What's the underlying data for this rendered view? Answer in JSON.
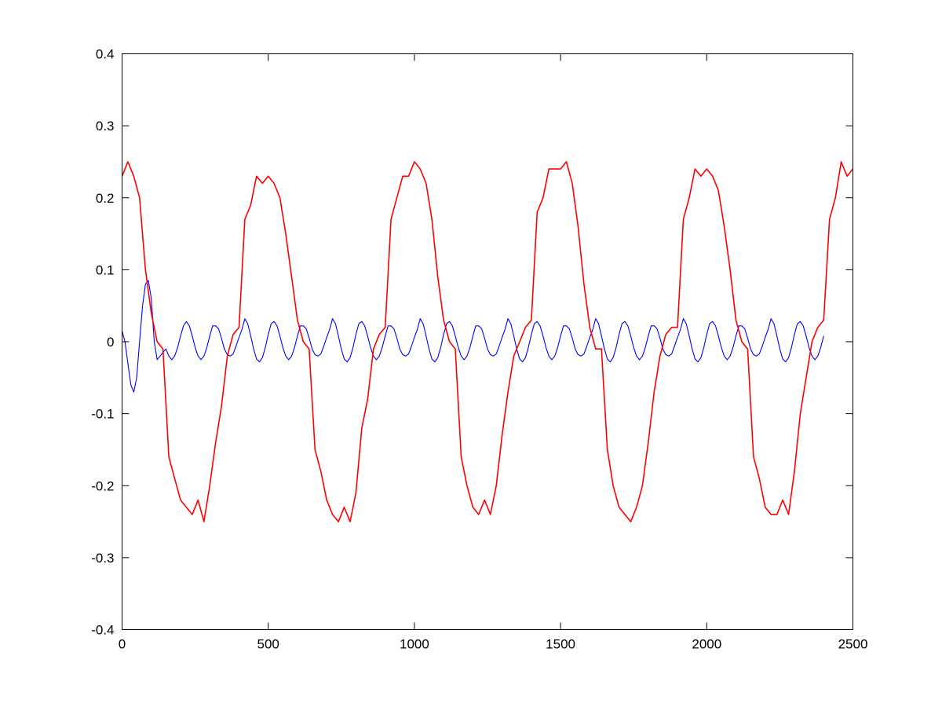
{
  "chart_data": {
    "type": "line",
    "title": "",
    "xlabel": "",
    "ylabel": "",
    "xlim": [
      0,
      2500
    ],
    "ylim": [
      -0.4,
      0.4
    ],
    "grid": false,
    "legend": "none",
    "xticks": [
      0,
      500,
      1000,
      1500,
      2000,
      2500
    ],
    "xtick_labels": [
      "0",
      "500",
      "1000",
      "1500",
      "2000",
      "2500"
    ],
    "yticks": [
      -0.4,
      -0.3,
      -0.2,
      -0.1,
      0,
      0.1,
      0.2,
      0.3,
      0.4
    ],
    "ytick_labels": [
      "-0.4",
      "-0.3",
      "-0.2",
      "-0.1",
      "0",
      "0.1",
      "0.2",
      "0.3",
      "0.4"
    ],
    "series": [
      {
        "name": "blue",
        "color": "#0000ff",
        "x_start": 0,
        "x_step": 10,
        "values": [
          0.015,
          0.0,
          -0.03,
          -0.06,
          -0.07,
          -0.05,
          0.0,
          0.05,
          0.08,
          0.085,
          0.06,
          0.0,
          -0.025,
          -0.02,
          -0.015,
          -0.01,
          -0.02,
          -0.025,
          -0.02,
          -0.008,
          0.008,
          0.022,
          0.028,
          0.022,
          0.008,
          -0.008,
          -0.02,
          -0.025,
          -0.02,
          -0.008,
          0.008,
          0.022,
          0.022,
          0.018,
          0.005,
          -0.01,
          -0.018,
          -0.02,
          -0.017,
          -0.006,
          0.006,
          0.017,
          0.032,
          0.025,
          0.008,
          -0.01,
          -0.024,
          -0.028,
          -0.022,
          -0.008,
          0.01,
          0.025,
          0.028,
          0.022,
          0.008,
          -0.008,
          -0.02,
          -0.025,
          -0.02,
          -0.008,
          0.008,
          0.022,
          0.022,
          0.018,
          0.005,
          -0.01,
          -0.018,
          -0.02,
          -0.017,
          -0.006,
          0.006,
          0.017,
          0.032,
          0.025,
          0.008,
          -0.01,
          -0.024,
          -0.028,
          -0.022,
          -0.008,
          0.01,
          0.025,
          0.028,
          0.022,
          0.008,
          -0.008,
          -0.02,
          -0.025,
          -0.02,
          -0.008,
          0.008,
          0.022,
          0.022,
          0.018,
          0.005,
          -0.01,
          -0.018,
          -0.02,
          -0.017,
          -0.006,
          0.006,
          0.017,
          0.032,
          0.025,
          0.008,
          -0.01,
          -0.024,
          -0.028,
          -0.022,
          -0.008,
          0.01,
          0.025,
          0.028,
          0.022,
          0.008,
          -0.008,
          -0.02,
          -0.025,
          -0.02,
          -0.008,
          0.008,
          0.022,
          0.022,
          0.018,
          0.005,
          -0.01,
          -0.018,
          -0.02,
          -0.017,
          -0.006,
          0.006,
          0.017,
          0.032,
          0.025,
          0.008,
          -0.01,
          -0.024,
          -0.028,
          -0.022,
          -0.008,
          0.01,
          0.025,
          0.028,
          0.022,
          0.008,
          -0.008,
          -0.02,
          -0.025,
          -0.02,
          -0.008,
          0.008,
          0.022,
          0.022,
          0.018,
          0.005,
          -0.01,
          -0.018,
          -0.02,
          -0.017,
          -0.006,
          0.006,
          0.017,
          0.032,
          0.025,
          0.008,
          -0.01,
          -0.024,
          -0.028,
          -0.022,
          -0.008,
          0.01,
          0.025,
          0.028,
          0.022,
          0.008,
          -0.008,
          -0.02,
          -0.025,
          -0.02,
          -0.008,
          0.008,
          0.022,
          0.022,
          0.018,
          0.005,
          -0.01,
          -0.018,
          -0.02,
          -0.017,
          -0.006,
          0.006,
          0.017,
          0.032,
          0.025,
          0.008,
          -0.01,
          -0.024,
          -0.028,
          -0.022,
          -0.008,
          0.01,
          0.025,
          0.028,
          0.022,
          0.008,
          -0.008,
          -0.02,
          -0.025,
          -0.02,
          -0.008,
          0.008,
          0.022,
          0.022,
          0.018,
          0.005,
          -0.01,
          -0.018,
          -0.02,
          -0.017,
          -0.006,
          0.006,
          0.017,
          0.032,
          0.025,
          0.008,
          -0.01,
          -0.024,
          -0.028,
          -0.022,
          -0.008,
          0.01,
          0.025,
          0.028,
          0.022,
          0.008,
          -0.008,
          -0.02,
          -0.025,
          -0.02,
          -0.008,
          0.008
        ]
      },
      {
        "name": "red",
        "color": "#ff0000",
        "x_start": 0,
        "x_step": 20,
        "values": [
          0.23,
          0.25,
          0.23,
          0.2,
          0.1,
          0.04,
          0.0,
          -0.01,
          -0.16,
          -0.19,
          -0.22,
          -0.23,
          -0.24,
          -0.22,
          -0.25,
          -0.2,
          -0.14,
          -0.09,
          -0.02,
          0.01,
          0.02,
          0.17,
          0.19,
          0.23,
          0.22,
          0.23,
          0.22,
          0.2,
          0.15,
          0.09,
          0.03,
          0.0,
          -0.01,
          -0.15,
          -0.18,
          -0.22,
          -0.24,
          -0.25,
          -0.23,
          -0.25,
          -0.21,
          -0.12,
          -0.08,
          -0.01,
          0.01,
          0.02,
          0.17,
          0.2,
          0.23,
          0.23,
          0.25,
          0.24,
          0.22,
          0.17,
          0.09,
          0.03,
          0.0,
          -0.01,
          -0.16,
          -0.2,
          -0.23,
          -0.24,
          -0.22,
          -0.24,
          -0.2,
          -0.13,
          -0.07,
          -0.02,
          0.0,
          0.02,
          0.03,
          0.18,
          0.2,
          0.24,
          0.24,
          0.24,
          0.25,
          0.22,
          0.16,
          0.08,
          0.02,
          -0.01,
          -0.01,
          -0.15,
          -0.2,
          -0.23,
          -0.24,
          -0.25,
          -0.23,
          -0.2,
          -0.14,
          -0.07,
          -0.02,
          0.01,
          0.02,
          0.02,
          0.17,
          0.2,
          0.24,
          0.23,
          0.24,
          0.23,
          0.21,
          0.16,
          0.1,
          0.03,
          0.0,
          -0.01,
          -0.16,
          -0.19,
          -0.23,
          -0.24,
          -0.24,
          -0.22,
          -0.24,
          -0.18,
          -0.1,
          -0.05,
          0.0,
          0.02,
          0.03,
          0.17,
          0.2,
          0.25,
          0.23,
          0.24
        ]
      }
    ]
  }
}
